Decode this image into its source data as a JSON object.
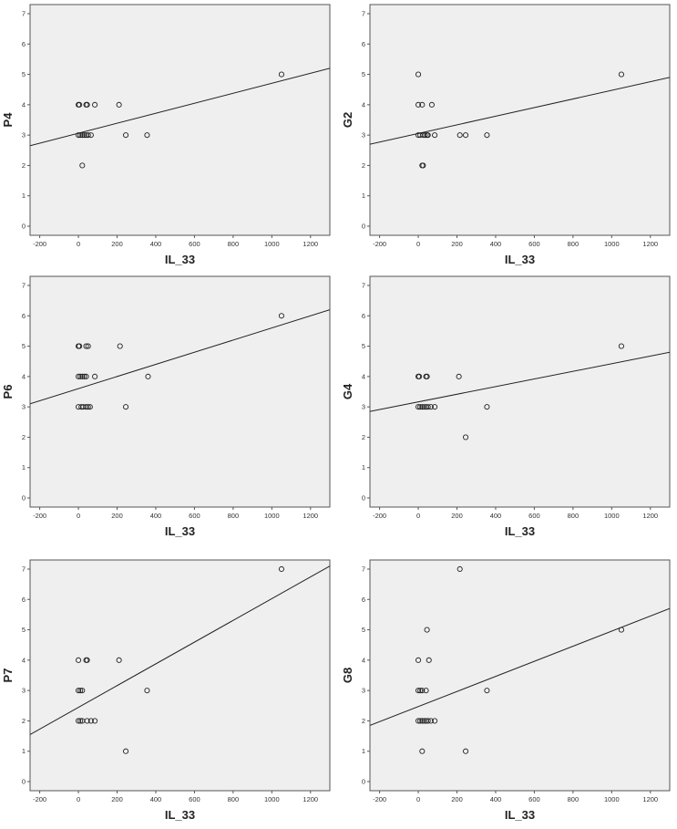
{
  "colors": {
    "plot_background": "#efefef",
    "plot_border": "#555555",
    "point_stroke": "#222222",
    "fit_line": "#222222",
    "text": "#222222"
  },
  "chart_data": [
    {
      "type": "scatter",
      "xlabel": "IL_33",
      "ylabel": "P4",
      "xlim": [
        -250,
        1300
      ],
      "ylim": [
        -0.3,
        7.3
      ],
      "xticks": [
        -200,
        0,
        200,
        400,
        600,
        800,
        1000,
        1200
      ],
      "yticks": [
        0,
        1,
        2,
        3,
        4,
        5,
        6,
        7
      ],
      "points": [
        [
          0,
          4
        ],
        [
          5,
          4
        ],
        [
          40,
          4
        ],
        [
          45,
          4
        ],
        [
          85,
          4
        ],
        [
          210,
          4
        ],
        [
          0,
          3
        ],
        [
          10,
          3
        ],
        [
          20,
          3
        ],
        [
          30,
          3
        ],
        [
          40,
          3
        ],
        [
          50,
          3
        ],
        [
          65,
          3
        ],
        [
          245,
          3
        ],
        [
          355,
          3
        ],
        [
          20,
          2
        ],
        [
          1050,
          5
        ]
      ],
      "fit_line": [
        [
          -250,
          2.65
        ],
        [
          1300,
          5.2
        ]
      ]
    },
    {
      "type": "scatter",
      "xlabel": "IL_33",
      "ylabel": "G2",
      "xlim": [
        -250,
        1300
      ],
      "ylim": [
        -0.3,
        7.3
      ],
      "xticks": [
        -200,
        0,
        200,
        400,
        600,
        800,
        1000,
        1200
      ],
      "yticks": [
        0,
        1,
        2,
        3,
        4,
        5,
        6,
        7
      ],
      "points": [
        [
          0,
          5
        ],
        [
          0,
          4
        ],
        [
          20,
          4
        ],
        [
          70,
          4
        ],
        [
          0,
          3
        ],
        [
          10,
          3
        ],
        [
          25,
          3
        ],
        [
          35,
          3
        ],
        [
          45,
          3
        ],
        [
          50,
          3
        ],
        [
          85,
          3
        ],
        [
          215,
          3
        ],
        [
          245,
          3
        ],
        [
          355,
          3
        ],
        [
          20,
          2
        ],
        [
          25,
          2
        ],
        [
          1050,
          5
        ]
      ],
      "fit_line": [
        [
          -250,
          2.7
        ],
        [
          1300,
          4.9
        ]
      ]
    },
    {
      "type": "scatter",
      "xlabel": "IL_33",
      "ylabel": "P6",
      "xlim": [
        -250,
        1300
      ],
      "ylim": [
        -0.3,
        7.3
      ],
      "xticks": [
        -200,
        0,
        200,
        400,
        600,
        800,
        1000,
        1200
      ],
      "yticks": [
        0,
        1,
        2,
        3,
        4,
        5,
        6,
        7
      ],
      "points": [
        [
          0,
          5
        ],
        [
          5,
          5
        ],
        [
          40,
          5
        ],
        [
          50,
          5
        ],
        [
          215,
          5
        ],
        [
          0,
          4
        ],
        [
          10,
          4
        ],
        [
          20,
          4
        ],
        [
          30,
          4
        ],
        [
          40,
          4
        ],
        [
          85,
          4
        ],
        [
          360,
          4
        ],
        [
          0,
          3
        ],
        [
          15,
          3
        ],
        [
          25,
          3
        ],
        [
          40,
          3
        ],
        [
          50,
          3
        ],
        [
          60,
          3
        ],
        [
          245,
          3
        ],
        [
          1050,
          6
        ]
      ],
      "fit_line": [
        [
          -250,
          3.1
        ],
        [
          1300,
          6.2
        ]
      ]
    },
    {
      "type": "scatter",
      "xlabel": "IL_33",
      "ylabel": "G4",
      "xlim": [
        -250,
        1300
      ],
      "ylim": [
        -0.3,
        7.3
      ],
      "xticks": [
        -200,
        0,
        200,
        400,
        600,
        800,
        1000,
        1200
      ],
      "yticks": [
        0,
        1,
        2,
        3,
        4,
        5,
        6,
        7
      ],
      "points": [
        [
          0,
          4
        ],
        [
          5,
          4
        ],
        [
          40,
          4
        ],
        [
          45,
          4
        ],
        [
          210,
          4
        ],
        [
          0,
          3
        ],
        [
          10,
          3
        ],
        [
          20,
          3
        ],
        [
          30,
          3
        ],
        [
          40,
          3
        ],
        [
          50,
          3
        ],
        [
          65,
          3
        ],
        [
          85,
          3
        ],
        [
          355,
          3
        ],
        [
          245,
          2
        ],
        [
          1050,
          5
        ]
      ],
      "fit_line": [
        [
          -250,
          2.85
        ],
        [
          1300,
          4.8
        ]
      ]
    },
    {
      "type": "scatter",
      "xlabel": "IL_33",
      "ylabel": "P7",
      "xlim": [
        -250,
        1300
      ],
      "ylim": [
        -0.3,
        7.3
      ],
      "xticks": [
        -200,
        0,
        200,
        400,
        600,
        800,
        1000,
        1200
      ],
      "yticks": [
        0,
        1,
        2,
        3,
        4,
        5,
        6,
        7
      ],
      "points": [
        [
          0,
          4
        ],
        [
          40,
          4
        ],
        [
          45,
          4
        ],
        [
          210,
          4
        ],
        [
          0,
          3
        ],
        [
          10,
          3
        ],
        [
          20,
          3
        ],
        [
          355,
          3
        ],
        [
          0,
          2
        ],
        [
          10,
          2
        ],
        [
          20,
          2
        ],
        [
          45,
          2
        ],
        [
          65,
          2
        ],
        [
          85,
          2
        ],
        [
          245,
          1
        ],
        [
          1050,
          7
        ]
      ],
      "fit_line": [
        [
          -250,
          1.55
        ],
        [
          1300,
          7.1
        ]
      ]
    },
    {
      "type": "scatter",
      "xlabel": "IL_33",
      "ylabel": "G8",
      "xlim": [
        -250,
        1300
      ],
      "ylim": [
        -0.3,
        7.3
      ],
      "xticks": [
        -200,
        0,
        200,
        400,
        600,
        800,
        1000,
        1200
      ],
      "yticks": [
        0,
        1,
        2,
        3,
        4,
        5,
        6,
        7
      ],
      "points": [
        [
          215,
          7
        ],
        [
          45,
          5
        ],
        [
          0,
          4
        ],
        [
          55,
          4
        ],
        [
          0,
          3
        ],
        [
          10,
          3
        ],
        [
          20,
          3
        ],
        [
          40,
          3
        ],
        [
          355,
          3
        ],
        [
          0,
          2
        ],
        [
          10,
          2
        ],
        [
          20,
          2
        ],
        [
          30,
          2
        ],
        [
          40,
          2
        ],
        [
          50,
          2
        ],
        [
          65,
          2
        ],
        [
          85,
          2
        ],
        [
          20,
          1
        ],
        [
          245,
          1
        ],
        [
          1050,
          5
        ]
      ],
      "fit_line": [
        [
          -250,
          1.85
        ],
        [
          1300,
          5.7
        ]
      ]
    }
  ]
}
